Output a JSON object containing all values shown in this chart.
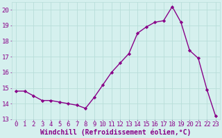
{
  "hours": [
    0,
    1,
    2,
    3,
    4,
    5,
    6,
    7,
    8,
    9,
    10,
    11,
    12,
    13,
    14,
    15,
    16,
    17,
    18,
    19,
    20,
    21,
    22,
    23
  ],
  "values": [
    14.8,
    14.8,
    14.5,
    14.2,
    14.2,
    14.1,
    14.0,
    13.9,
    13.7,
    14.4,
    15.2,
    16.0,
    16.6,
    17.2,
    18.5,
    18.9,
    19.2,
    19.3,
    20.2,
    19.2,
    17.4,
    16.9,
    14.9,
    13.2
  ],
  "line_color": "#880088",
  "marker": "D",
  "marker_size": 2.2,
  "bg_color": "#d5f0ee",
  "grid_color": "#b8ddd9",
  "xlabel": "Windchill (Refroidissement éolien,°C)",
  "xlabel_color": "#880088",
  "xlabel_fontsize": 7,
  "tick_color": "#880088",
  "tick_fontsize": 6.5,
  "ylim": [
    13,
    20.5
  ],
  "yticks": [
    13,
    14,
    15,
    16,
    17,
    18,
    19,
    20
  ],
  "line_width": 1.0,
  "figsize": [
    3.2,
    2.0
  ],
  "dpi": 100
}
